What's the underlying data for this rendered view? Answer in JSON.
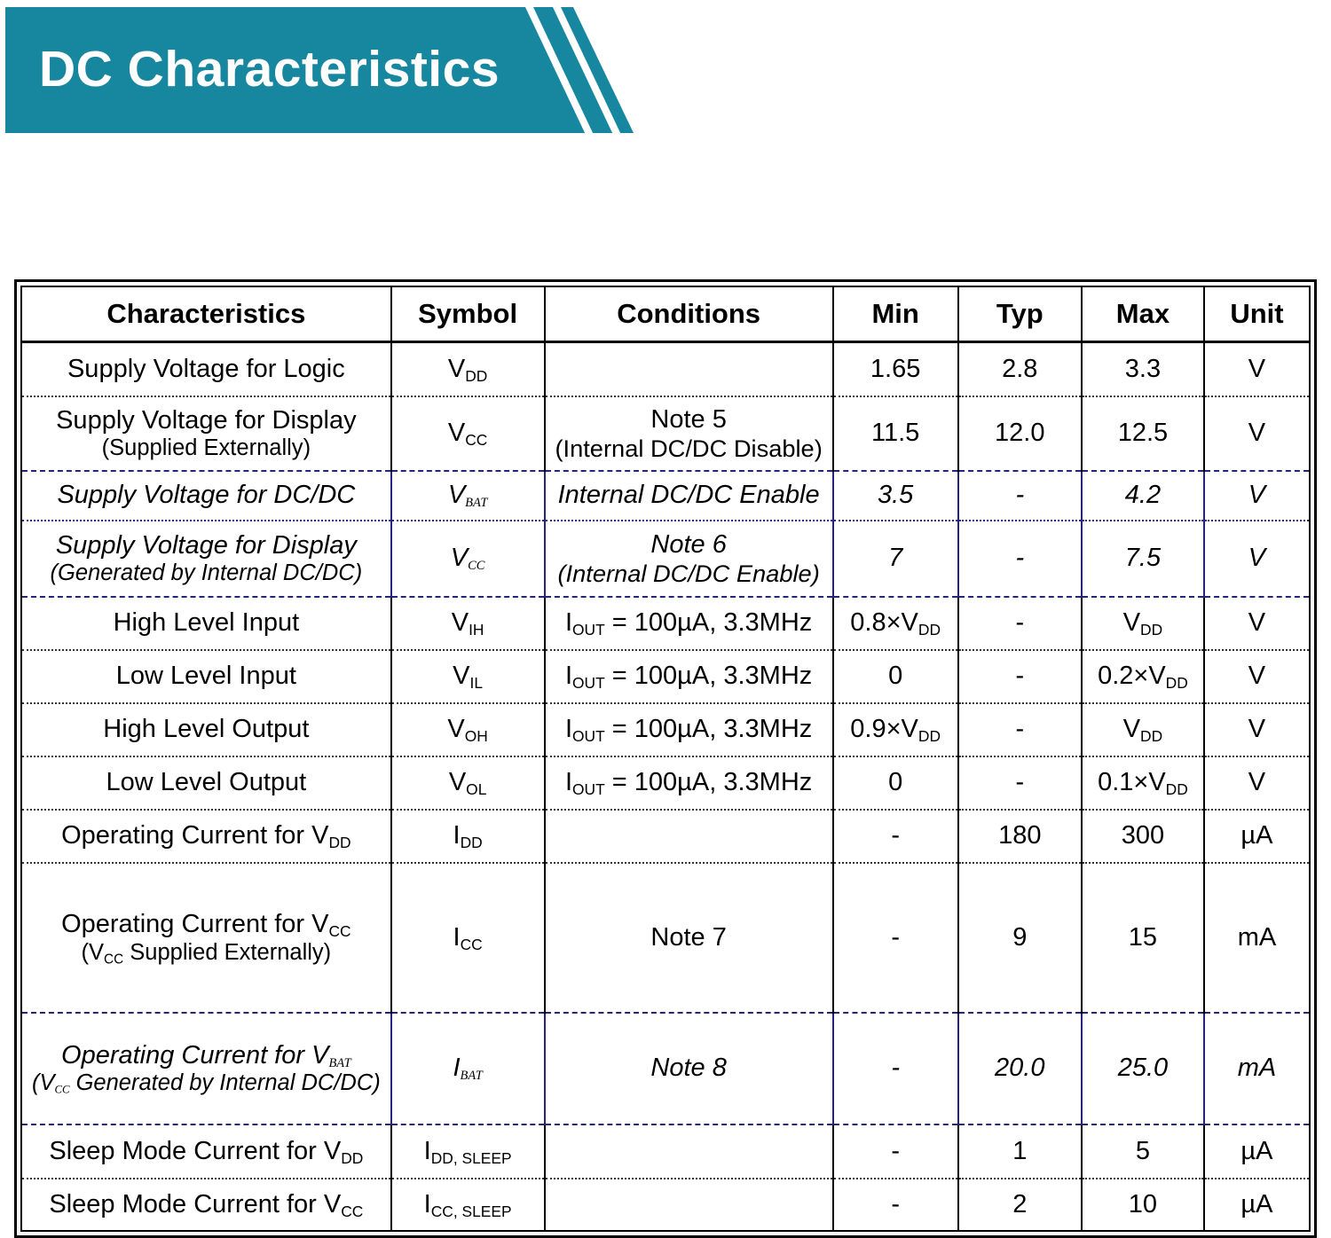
{
  "banner": {
    "title": "DC Characteristics"
  },
  "colors": {
    "accent_teal": "#16879f",
    "divider_navy": "#24247d"
  },
  "table": {
    "headers": [
      {
        "key": "characteristics",
        "label": "Characteristics"
      },
      {
        "key": "symbol",
        "label": "Symbol"
      },
      {
        "key": "conditions",
        "label": "Conditions"
      },
      {
        "key": "min",
        "label": "Min"
      },
      {
        "key": "typ",
        "label": "Typ"
      },
      {
        "key": "max",
        "label": "Max"
      },
      {
        "key": "unit",
        "label": "Unit"
      }
    ],
    "rows": [
      {
        "name": "supply-voltage-logic",
        "italic": false,
        "separator": "dotted",
        "characteristic": [
          [
            {
              "t": "Supply Voltage for Logic"
            }
          ]
        ],
        "symbol": [
          {
            "t": "V"
          },
          {
            "t": "DD",
            "sub": true
          }
        ],
        "conditions": [],
        "min": [
          {
            "t": "1.65"
          }
        ],
        "typ": [
          {
            "t": "2.8"
          }
        ],
        "max": [
          {
            "t": "3.3"
          }
        ],
        "unit": [
          {
            "t": "V"
          }
        ]
      },
      {
        "name": "supply-voltage-display-external",
        "italic": false,
        "separator": "dashdot",
        "characteristic": [
          [
            {
              "t": "Supply Voltage for Display"
            }
          ],
          [
            {
              "t": "(Supplied Externally)"
            }
          ]
        ],
        "symbol": [
          {
            "t": "V"
          },
          {
            "t": "CC",
            "sub": true
          }
        ],
        "conditions": [
          [
            {
              "t": "Note 5"
            }
          ],
          [
            {
              "t": "(Internal DC/DC Disable)"
            }
          ]
        ],
        "min": [
          {
            "t": "11.5"
          }
        ],
        "typ": [
          {
            "t": "12.0"
          }
        ],
        "max": [
          {
            "t": "12.5"
          }
        ],
        "unit": [
          {
            "t": "V"
          }
        ]
      },
      {
        "name": "supply-voltage-dcdc",
        "italic": true,
        "separator": "dotted-navy",
        "characteristic": [
          [
            {
              "t": "Supply Voltage for DC/DC"
            }
          ]
        ],
        "symbol": [
          {
            "t": "V"
          },
          {
            "t": "BAT",
            "sub": true
          }
        ],
        "conditions": [
          [
            {
              "t": "Internal DC/DC Enable"
            }
          ]
        ],
        "min": [
          {
            "t": "3.5"
          }
        ],
        "typ": [
          {
            "t": "-"
          }
        ],
        "max": [
          {
            "t": "4.2"
          }
        ],
        "unit": [
          {
            "t": "V"
          }
        ]
      },
      {
        "name": "supply-voltage-display-internal",
        "italic": true,
        "separator": "dashdot",
        "characteristic": [
          [
            {
              "t": "Supply Voltage for Display"
            }
          ],
          [
            {
              "t": "(Generated by Internal DC/DC)"
            }
          ]
        ],
        "symbol": [
          {
            "t": "V"
          },
          {
            "t": "CC",
            "sub": true
          }
        ],
        "conditions": [
          [
            {
              "t": "Note 6"
            }
          ],
          [
            {
              "t": "(Internal DC/DC Enable)"
            }
          ]
        ],
        "min": [
          {
            "t": "7"
          }
        ],
        "typ": [
          {
            "t": "-"
          }
        ],
        "max": [
          {
            "t": "7.5"
          }
        ],
        "unit": [
          {
            "t": "V"
          }
        ]
      },
      {
        "name": "high-level-input",
        "italic": false,
        "separator": "dotted",
        "characteristic": [
          [
            {
              "t": "High Level Input"
            }
          ]
        ],
        "symbol": [
          {
            "t": "V"
          },
          {
            "t": "IH",
            "sub": true
          }
        ],
        "conditions": [
          [
            {
              "t": "I"
            },
            {
              "t": "OUT",
              "sub": true
            },
            {
              "t": " = 100µA, 3.3MHz"
            }
          ]
        ],
        "min": [
          {
            "t": "0.8×V"
          },
          {
            "t": "DD",
            "sub": true
          }
        ],
        "typ": [
          {
            "t": "-"
          }
        ],
        "max": [
          {
            "t": "V"
          },
          {
            "t": "DD",
            "sub": true
          }
        ],
        "unit": [
          {
            "t": "V"
          }
        ]
      },
      {
        "name": "low-level-input",
        "italic": false,
        "separator": "dotted",
        "characteristic": [
          [
            {
              "t": "Low Level Input"
            }
          ]
        ],
        "symbol": [
          {
            "t": "V"
          },
          {
            "t": "IL",
            "sub": true
          }
        ],
        "conditions": [
          [
            {
              "t": "I"
            },
            {
              "t": "OUT",
              "sub": true
            },
            {
              "t": " = 100µA, 3.3MHz"
            }
          ]
        ],
        "min": [
          {
            "t": "0"
          }
        ],
        "typ": [
          {
            "t": "-"
          }
        ],
        "max": [
          {
            "t": "0.2×V"
          },
          {
            "t": "DD",
            "sub": true
          }
        ],
        "unit": [
          {
            "t": "V"
          }
        ]
      },
      {
        "name": "high-level-output",
        "italic": false,
        "separator": "dotted",
        "characteristic": [
          [
            {
              "t": "High Level Output"
            }
          ]
        ],
        "symbol": [
          {
            "t": "V"
          },
          {
            "t": "OH",
            "sub": true
          }
        ],
        "conditions": [
          [
            {
              "t": "I"
            },
            {
              "t": "OUT",
              "sub": true
            },
            {
              "t": " = 100µA, 3.3MHz"
            }
          ]
        ],
        "min": [
          {
            "t": "0.9×V"
          },
          {
            "t": "DD",
            "sub": true
          }
        ],
        "typ": [
          {
            "t": "-"
          }
        ],
        "max": [
          {
            "t": "V"
          },
          {
            "t": "DD",
            "sub": true
          }
        ],
        "unit": [
          {
            "t": "V"
          }
        ]
      },
      {
        "name": "low-level-output",
        "italic": false,
        "separator": "dotted",
        "characteristic": [
          [
            {
              "t": "Low Level Output"
            }
          ]
        ],
        "symbol": [
          {
            "t": "V"
          },
          {
            "t": "OL",
            "sub": true
          }
        ],
        "conditions": [
          [
            {
              "t": "I"
            },
            {
              "t": "OUT",
              "sub": true
            },
            {
              "t": " = 100µA, 3.3MHz"
            }
          ]
        ],
        "min": [
          {
            "t": "0"
          }
        ],
        "typ": [
          {
            "t": "-"
          }
        ],
        "max": [
          {
            "t": "0.1×V"
          },
          {
            "t": "DD",
            "sub": true
          }
        ],
        "unit": [
          {
            "t": "V"
          }
        ]
      },
      {
        "name": "operating-current-vdd",
        "italic": false,
        "separator": "dotted",
        "characteristic": [
          [
            {
              "t": "Operating Current for V"
            },
            {
              "t": "DD",
              "sub": true
            }
          ]
        ],
        "symbol": [
          {
            "t": "I"
          },
          {
            "t": "DD",
            "sub": true
          }
        ],
        "conditions": [],
        "min": [
          {
            "t": "-"
          }
        ],
        "typ": [
          {
            "t": "180"
          }
        ],
        "max": [
          {
            "t": "300"
          }
        ],
        "unit": [
          {
            "t": "µA"
          }
        ]
      },
      {
        "name": "operating-current-vcc",
        "italic": false,
        "separator": "dashdot",
        "characteristic": [
          [
            {
              "t": "Operating Current for V"
            },
            {
              "t": "CC",
              "sub": true
            }
          ],
          [
            {
              "t": "(V"
            },
            {
              "t": "CC",
              "sub": true
            },
            {
              "t": " Supplied Externally)"
            }
          ]
        ],
        "symbol": [
          {
            "t": "I"
          },
          {
            "t": "CC",
            "sub": true
          }
        ],
        "conditions": [
          [
            {
              "t": "Note 7"
            }
          ]
        ],
        "min": [
          {
            "t": "-"
          }
        ],
        "typ": [
          {
            "t": "9"
          }
        ],
        "max": [
          {
            "t": "15"
          }
        ],
        "unit": [
          {
            "t": "mA"
          }
        ]
      },
      {
        "name": "operating-current-vbat",
        "italic": true,
        "separator": "dashdot",
        "characteristic": [
          [
            {
              "t": "Operating Current for V"
            },
            {
              "t": "BAT",
              "sub": true
            }
          ],
          [
            {
              "t": "(V"
            },
            {
              "t": "CC",
              "sub": true
            },
            {
              "t": " Generated by Internal DC/DC)"
            }
          ]
        ],
        "symbol": [
          {
            "t": "I"
          },
          {
            "t": "BAT",
            "sub": true
          }
        ],
        "conditions": [
          [
            {
              "t": "Note 8"
            }
          ]
        ],
        "min": [
          {
            "t": "-"
          }
        ],
        "typ": [
          {
            "t": "20.0"
          }
        ],
        "max": [
          {
            "t": "25.0"
          }
        ],
        "unit": [
          {
            "t": "mA"
          }
        ]
      },
      {
        "name": "sleep-mode-current-vdd",
        "italic": false,
        "separator": "dotted",
        "characteristic": [
          [
            {
              "t": "Sleep Mode Current for V"
            },
            {
              "t": "DD",
              "sub": true
            }
          ]
        ],
        "symbol": [
          {
            "t": "I"
          },
          {
            "t": "DD, SLEEP",
            "sub": true
          }
        ],
        "conditions": [],
        "min": [
          {
            "t": "-"
          }
        ],
        "typ": [
          {
            "t": "1"
          }
        ],
        "max": [
          {
            "t": "5"
          }
        ],
        "unit": [
          {
            "t": "µA"
          }
        ]
      },
      {
        "name": "sleep-mode-current-vcc",
        "italic": false,
        "separator": "none",
        "characteristic": [
          [
            {
              "t": "Sleep Mode Current for V"
            },
            {
              "t": "CC",
              "sub": true
            }
          ]
        ],
        "symbol": [
          {
            "t": "I"
          },
          {
            "t": "CC, SLEEP",
            "sub": true
          }
        ],
        "conditions": [],
        "min": [
          {
            "t": "-"
          }
        ],
        "typ": [
          {
            "t": "2"
          }
        ],
        "max": [
          {
            "t": "10"
          }
        ],
        "unit": [
          {
            "t": "µA"
          }
        ]
      }
    ]
  }
}
